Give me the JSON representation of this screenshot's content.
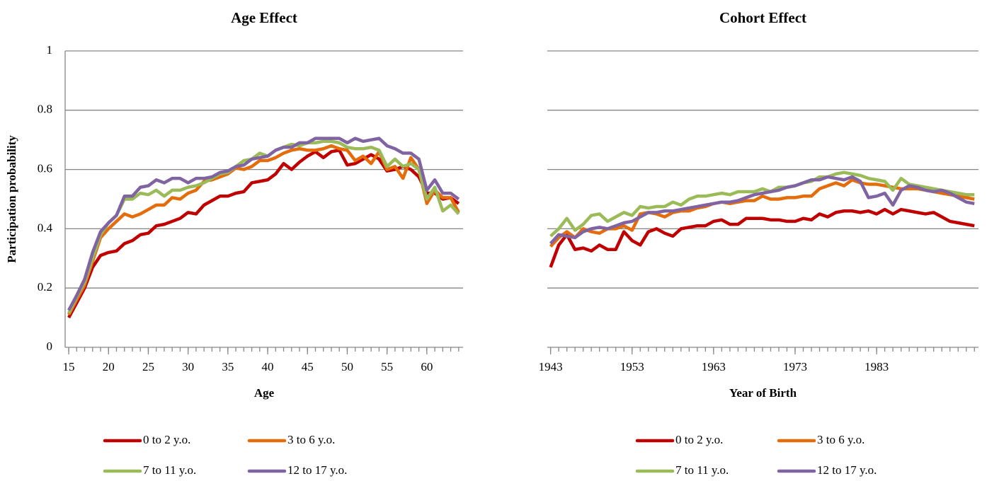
{
  "chart_data": [
    {
      "type": "line",
      "title": "Age Effect",
      "xlabel": "Age",
      "ylabel": "Participation probability",
      "x": [
        15,
        16,
        17,
        18,
        19,
        20,
        21,
        22,
        23,
        24,
        25,
        26,
        27,
        28,
        29,
        30,
        31,
        32,
        33,
        34,
        35,
        36,
        37,
        38,
        39,
        40,
        41,
        42,
        43,
        44,
        45,
        46,
        47,
        48,
        49,
        50,
        51,
        52,
        53,
        54,
        55,
        56,
        57,
        58,
        59,
        60,
        61,
        62,
        63,
        64
      ],
      "xlim": [
        14.55,
        64.55
      ],
      "xticks": [
        15,
        20,
        25,
        30,
        35,
        40,
        45,
        50,
        55,
        60
      ],
      "ylim": [
        0,
        1
      ],
      "yticks": [
        0,
        0.2,
        0.4,
        0.6,
        0.8,
        1
      ],
      "ytick_labels": true,
      "grid": true,
      "legend": "bottom",
      "series": [
        {
          "name": "0 to 2 y.o.",
          "color": "#c00000",
          "values": [
            0.1,
            0.15,
            0.2,
            0.27,
            0.31,
            0.32,
            0.325,
            0.35,
            0.36,
            0.38,
            0.385,
            0.41,
            0.415,
            0.425,
            0.435,
            0.455,
            0.45,
            0.48,
            0.495,
            0.51,
            0.51,
            0.52,
            0.525,
            0.555,
            0.56,
            0.565,
            0.585,
            0.62,
            0.6,
            0.625,
            0.645,
            0.66,
            0.64,
            0.66,
            0.665,
            0.615,
            0.62,
            0.635,
            0.65,
            0.635,
            0.595,
            0.6,
            0.61,
            0.6,
            0.575,
            0.52,
            0.52,
            0.5,
            0.505,
            0.485
          ]
        },
        {
          "name": "3 to 6 y.o.",
          "color": "#e46c0a",
          "values": [
            0.11,
            0.16,
            0.21,
            0.29,
            0.37,
            0.4,
            0.425,
            0.45,
            0.44,
            0.45,
            0.465,
            0.48,
            0.48,
            0.505,
            0.5,
            0.52,
            0.53,
            0.56,
            0.565,
            0.575,
            0.585,
            0.605,
            0.6,
            0.61,
            0.63,
            0.63,
            0.64,
            0.655,
            0.665,
            0.67,
            0.665,
            0.665,
            0.67,
            0.68,
            0.67,
            0.665,
            0.63,
            0.645,
            0.62,
            0.66,
            0.6,
            0.61,
            0.57,
            0.64,
            0.6,
            0.485,
            0.53,
            0.505,
            0.505,
            0.455
          ]
        },
        {
          "name": "7 to 11 y.o.",
          "color": "#9bbb59",
          "values": [
            0.115,
            0.17,
            0.22,
            0.3,
            0.38,
            0.42,
            0.445,
            0.5,
            0.5,
            0.52,
            0.515,
            0.53,
            0.51,
            0.53,
            0.53,
            0.54,
            0.545,
            0.555,
            0.57,
            0.585,
            0.59,
            0.61,
            0.63,
            0.635,
            0.655,
            0.645,
            0.665,
            0.675,
            0.685,
            0.68,
            0.69,
            0.69,
            0.695,
            0.695,
            0.69,
            0.675,
            0.67,
            0.67,
            0.675,
            0.665,
            0.61,
            0.635,
            0.61,
            0.62,
            0.6,
            0.5,
            0.54,
            0.46,
            0.48,
            0.45
          ]
        },
        {
          "name": "12 to 17 y.o.",
          "color": "#8064a2",
          "values": [
            0.125,
            0.175,
            0.23,
            0.32,
            0.39,
            0.42,
            0.445,
            0.51,
            0.51,
            0.54,
            0.545,
            0.565,
            0.555,
            0.57,
            0.57,
            0.555,
            0.57,
            0.57,
            0.575,
            0.59,
            0.595,
            0.61,
            0.615,
            0.635,
            0.64,
            0.645,
            0.665,
            0.675,
            0.675,
            0.69,
            0.69,
            0.705,
            0.705,
            0.705,
            0.705,
            0.69,
            0.705,
            0.695,
            0.7,
            0.705,
            0.68,
            0.67,
            0.655,
            0.655,
            0.635,
            0.53,
            0.565,
            0.52,
            0.52,
            0.5
          ]
        }
      ]
    },
    {
      "type": "line",
      "title": "Cohort Effect",
      "xlabel": "Year of Birth",
      "x": [
        1943,
        1944,
        1945,
        1946,
        1947,
        1948,
        1949,
        1950,
        1951,
        1952,
        1953,
        1954,
        1955,
        1956,
        1957,
        1958,
        1959,
        1960,
        1961,
        1962,
        1963,
        1964,
        1965,
        1966,
        1967,
        1968,
        1969,
        1970,
        1971,
        1972,
        1973,
        1974,
        1975,
        1976,
        1977,
        1978,
        1979,
        1980,
        1981,
        1982,
        1983,
        1984,
        1985,
        1986,
        1987,
        1988,
        1989,
        1990,
        1991,
        1992,
        1993,
        1994,
        1995
      ],
      "xlim": [
        1942.6,
        1995.5
      ],
      "xticks": [
        1943,
        1953,
        1963,
        1973,
        1983
      ],
      "ylim": [
        0,
        1
      ],
      "yticks": [
        0,
        0.2,
        0.4,
        0.6,
        0.8,
        1
      ],
      "ytick_labels": false,
      "grid": true,
      "legend": "bottom",
      "series": [
        {
          "name": "0 to 2 y.o.",
          "color": "#c00000",
          "values": [
            0.27,
            0.345,
            0.38,
            0.33,
            0.335,
            0.325,
            0.345,
            0.33,
            0.33,
            0.39,
            0.36,
            0.345,
            0.39,
            0.4,
            0.385,
            0.375,
            0.4,
            0.405,
            0.41,
            0.41,
            0.425,
            0.43,
            0.415,
            0.415,
            0.435,
            0.435,
            0.435,
            0.43,
            0.43,
            0.425,
            0.425,
            0.435,
            0.43,
            0.45,
            0.44,
            0.455,
            0.46,
            0.46,
            0.455,
            0.46,
            0.45,
            0.465,
            0.45,
            0.465,
            0.46,
            0.455,
            0.45,
            0.455,
            0.44,
            0.425,
            0.42,
            0.415,
            0.41
          ]
        },
        {
          "name": "3 to 6 y.o.",
          "color": "#e46c0a",
          "values": [
            0.34,
            0.37,
            0.39,
            0.37,
            0.4,
            0.39,
            0.385,
            0.4,
            0.4,
            0.41,
            0.395,
            0.45,
            0.455,
            0.45,
            0.44,
            0.455,
            0.46,
            0.46,
            0.47,
            0.475,
            0.485,
            0.49,
            0.485,
            0.49,
            0.495,
            0.495,
            0.51,
            0.5,
            0.5,
            0.505,
            0.505,
            0.51,
            0.51,
            0.535,
            0.545,
            0.555,
            0.545,
            0.565,
            0.555,
            0.55,
            0.55,
            0.545,
            0.54,
            0.535,
            0.535,
            0.535,
            0.53,
            0.525,
            0.52,
            0.515,
            0.51,
            0.505,
            0.5
          ]
        },
        {
          "name": "7 to 11 y.o.",
          "color": "#9bbb59",
          "values": [
            0.375,
            0.4,
            0.435,
            0.395,
            0.415,
            0.445,
            0.45,
            0.425,
            0.44,
            0.455,
            0.445,
            0.475,
            0.47,
            0.475,
            0.475,
            0.49,
            0.48,
            0.5,
            0.51,
            0.51,
            0.515,
            0.52,
            0.515,
            0.525,
            0.525,
            0.525,
            0.535,
            0.525,
            0.54,
            0.54,
            0.545,
            0.555,
            0.56,
            0.575,
            0.575,
            0.585,
            0.59,
            0.585,
            0.58,
            0.57,
            0.565,
            0.56,
            0.53,
            0.57,
            0.55,
            0.545,
            0.54,
            0.535,
            0.53,
            0.525,
            0.52,
            0.515,
            0.515
          ]
        },
        {
          "name": "12 to 17 y.o.",
          "color": "#8064a2",
          "values": [
            0.35,
            0.38,
            0.375,
            0.37,
            0.39,
            0.4,
            0.405,
            0.4,
            0.41,
            0.42,
            0.425,
            0.44,
            0.455,
            0.455,
            0.46,
            0.46,
            0.465,
            0.47,
            0.475,
            0.48,
            0.485,
            0.49,
            0.49,
            0.495,
            0.505,
            0.515,
            0.52,
            0.525,
            0.53,
            0.54,
            0.545,
            0.555,
            0.565,
            0.565,
            0.575,
            0.57,
            0.565,
            0.575,
            0.56,
            0.505,
            0.51,
            0.52,
            0.48,
            0.53,
            0.545,
            0.54,
            0.53,
            0.525,
            0.53,
            0.52,
            0.505,
            0.49,
            0.485
          ]
        }
      ]
    }
  ]
}
